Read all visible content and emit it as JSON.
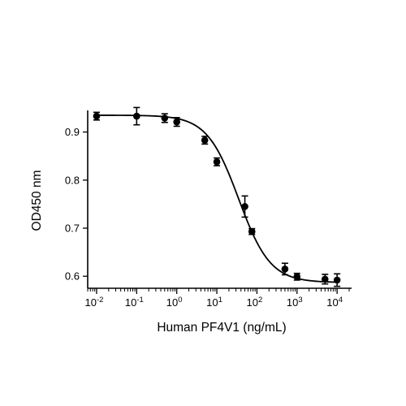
{
  "chart_data": {
    "type": "scatter",
    "title": "",
    "xlabel": "Human PF4V1 (ng/mL)",
    "ylabel": "OD450 nm",
    "x_scale": "log",
    "xlim": [
      0.006,
      20000
    ],
    "ylim": [
      0.575,
      0.95
    ],
    "x_ticks": [
      {
        "value": 0.01,
        "base": "10",
        "exp": "-2"
      },
      {
        "value": 0.1,
        "base": "10",
        "exp": "-1"
      },
      {
        "value": 1,
        "base": "10",
        "exp": "0"
      },
      {
        "value": 10,
        "base": "10",
        "exp": "1"
      },
      {
        "value": 100,
        "base": "10",
        "exp": "2"
      },
      {
        "value": 1000,
        "base": "10",
        "exp": "3"
      },
      {
        "value": 10000,
        "base": "10",
        "exp": "4"
      }
    ],
    "y_ticks": [
      {
        "value": 0.6,
        "label": "0.6"
      },
      {
        "value": 0.7,
        "label": "0.7"
      },
      {
        "value": 0.8,
        "label": "0.8"
      },
      {
        "value": 0.9,
        "label": "0.9"
      }
    ],
    "grid": false,
    "legend": "none",
    "series": [
      {
        "points": [
          {
            "x": 0.01,
            "y": 0.933,
            "err": 0.008
          },
          {
            "x": 0.1,
            "y": 0.933,
            "err": 0.018
          },
          {
            "x": 0.5,
            "y": 0.929,
            "err": 0.009
          },
          {
            "x": 1,
            "y": 0.921,
            "err": 0.009
          },
          {
            "x": 5,
            "y": 0.883,
            "err": 0.008
          },
          {
            "x": 10,
            "y": 0.838,
            "err": 0.008
          },
          {
            "x": 50,
            "y": 0.745,
            "err": 0.022
          },
          {
            "x": 75,
            "y": 0.693,
            "err": 0.006
          },
          {
            "x": 500,
            "y": 0.615,
            "err": 0.012
          },
          {
            "x": 1000,
            "y": 0.599,
            "err": 0.007
          },
          {
            "x": 5000,
            "y": 0.594,
            "err": 0.01
          },
          {
            "x": 10000,
            "y": 0.592,
            "err": 0.013
          }
        ],
        "fit": {
          "model": "4PL",
          "top": 0.935,
          "bottom": 0.587,
          "ec50": 35,
          "hill": 1.1
        }
      }
    ]
  }
}
